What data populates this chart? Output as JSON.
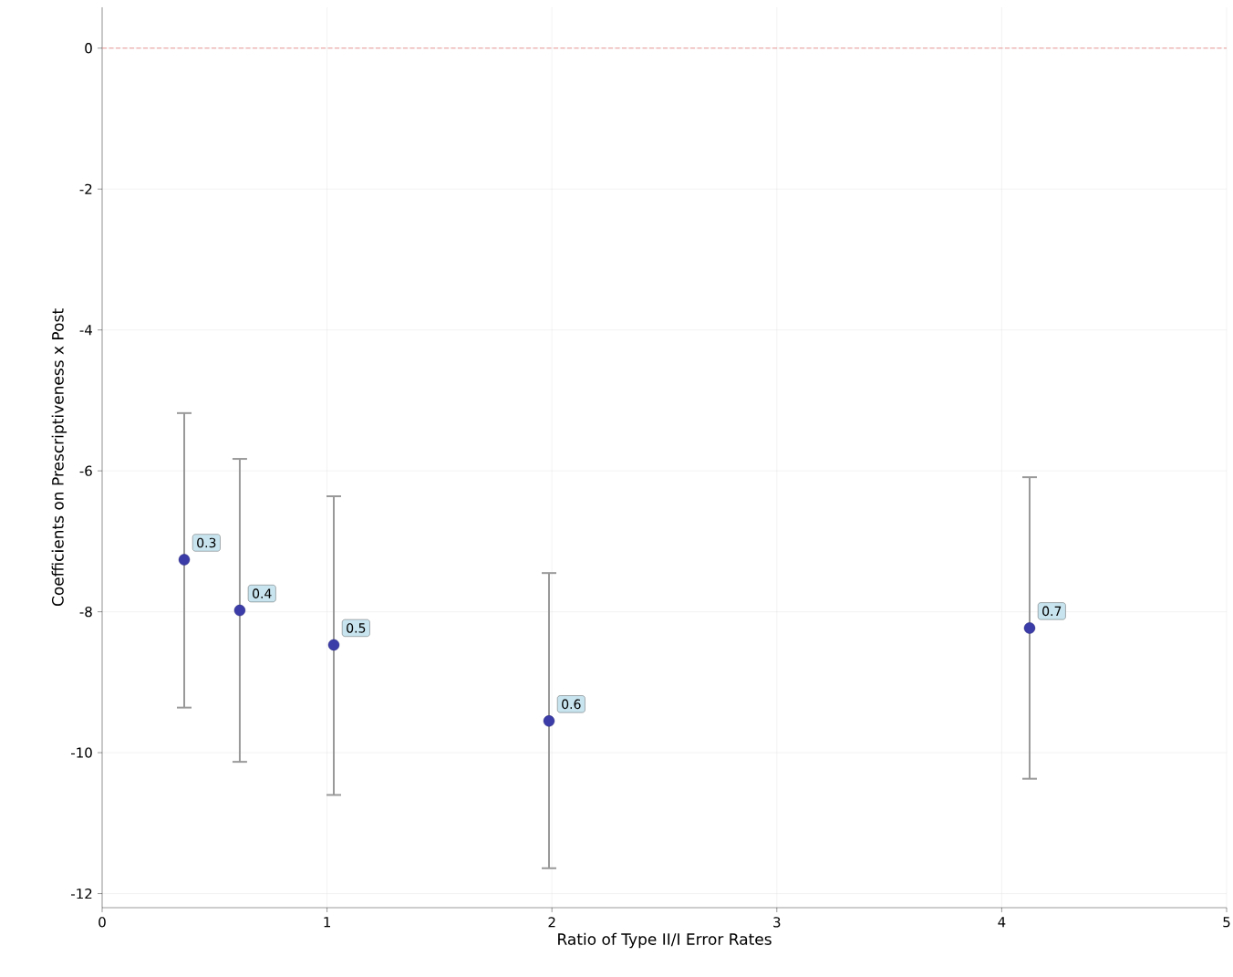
{
  "chart_data": {
    "type": "scatter",
    "xlabel": "Ratio of Type II/I Error Rates",
    "ylabel": "Coefficients on Prescriptiveness x Post",
    "x": [
      0.365,
      0.612,
      1.03,
      1.987,
      4.124
    ],
    "values": [
      -7.26,
      -7.98,
      -8.47,
      -9.55,
      -8.23
    ],
    "errors": [
      [
        -9.36,
        -5.18
      ],
      [
        -10.13,
        -5.83
      ],
      [
        -10.6,
        -6.36
      ],
      [
        -11.64,
        -7.45
      ],
      [
        -10.37,
        -6.09
      ]
    ],
    "color": "#3c3ca8",
    "marker": "circle",
    "grid": true,
    "xlim": [
      0,
      5
    ],
    "ylim": [
      -12.2,
      0.58
    ],
    "xticks": [
      0,
      1,
      2,
      3,
      4,
      5
    ],
    "yticks": [
      -12,
      -10,
      -8,
      -6,
      -4,
      -2,
      0
    ],
    "ref_lines": [
      {
        "axis": "y",
        "value": 0,
        "color": "#e88080",
        "line_style": "dashed"
      }
    ],
    "annotations": [
      {
        "text": "0.3",
        "x": 0.365,
        "y": -7.26
      },
      {
        "text": "0.4",
        "x": 0.612,
        "y": -7.98
      },
      {
        "text": "0.5",
        "x": 1.03,
        "y": -8.47
      },
      {
        "text": "0.6",
        "x": 1.987,
        "y": -9.55
      },
      {
        "text": "0.7",
        "x": 4.124,
        "y": -8.23
      }
    ]
  }
}
